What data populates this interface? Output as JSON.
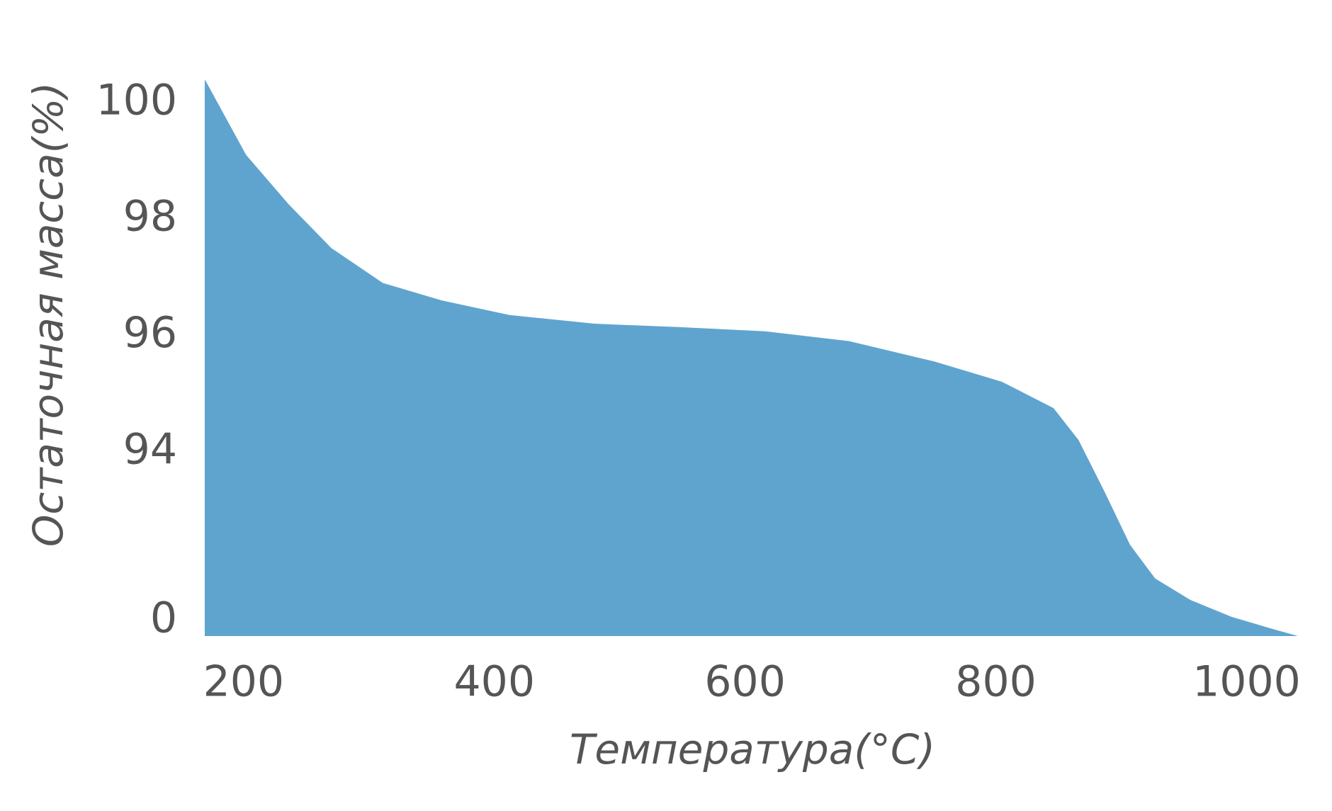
{
  "chart_data": {
    "type": "area",
    "x_label": "Температура(°C)",
    "y_label": "Остаточная масса(%)",
    "x": [
      169,
      202,
      236,
      270,
      311,
      358,
      412,
      480,
      548,
      616,
      683,
      751,
      805,
      846,
      866,
      887,
      907,
      927,
      955,
      988,
      1022,
      1041
    ],
    "values": [
      100.4,
      99.1,
      98.25,
      97.5,
      96.9,
      96.6,
      96.35,
      96.2,
      96.14,
      96.07,
      95.9,
      95.55,
      95.2,
      94.75,
      94.2,
      93.3,
      92.4,
      78,
      49,
      26,
      9,
      0
    ],
    "color": "#5fa4ce",
    "xlim": [
      169,
      1041
    ],
    "xticks": [
      200,
      400,
      600,
      800,
      1000
    ],
    "ylim": [
      0,
      100.4
    ],
    "y_break": 92,
    "yticks": [
      0,
      94,
      96,
      98,
      100
    ],
    "grid": false
  }
}
